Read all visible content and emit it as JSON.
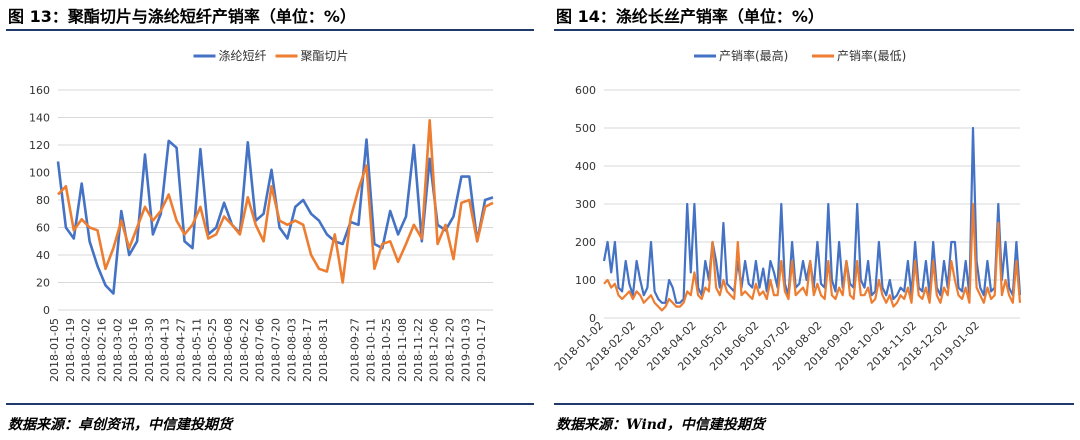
{
  "left": {
    "title": "图 13：聚酯切片与涤纶短纤产销率（单位：%）",
    "source": "数据来源：卓创资讯，中信建投期货",
    "chart_data": {
      "type": "line",
      "x": [
        "2018-01-05",
        "2018-01-12",
        "2018-01-19",
        "2018-01-26",
        "2018-02-02",
        "2018-02-09",
        "2018-02-16",
        "2018-02-23",
        "2018-03-02",
        "2018-03-09",
        "2018-03-16",
        "2018-03-23",
        "2018-03-30",
        "2018-04-06",
        "2018-04-13",
        "2018-04-20",
        "2018-04-27",
        "2018-05-04",
        "2018-05-11",
        "2018-05-18",
        "2018-05-25",
        "2018-06-01",
        "2018-06-08",
        "2018-06-15",
        "2018-06-22",
        "2018-06-29",
        "2018-07-06",
        "2018-07-13",
        "2018-07-20",
        "2018-07-27",
        "2018-08-03",
        "2018-08-10",
        "2018-08-17",
        "2018-08-24",
        "2018-08-31",
        "2018-09-07",
        "2018-09-14",
        "2018-09-21",
        "2018-09-27",
        "2018-10-05",
        "2018-10-11",
        "2018-10-18",
        "2018-10-25",
        "2018-11-01",
        "2018-11-08",
        "2018-11-15",
        "2018-11-22",
        "2018-11-29",
        "2018-12-06",
        "2018-12-13",
        "2018-12-20",
        "2018-12-27",
        "2019-01-03",
        "2019-01-10",
        "2019-01-17",
        "2019-01-24"
      ],
      "tick_labels": [
        "2018-01-05",
        "2018-01-19",
        "2018-02-02",
        "2018-02-16",
        "2018-03-02",
        "2018-03-16",
        "2018-03-30",
        "2018-04-13",
        "2018-04-27",
        "2018-05-11",
        "2018-05-25",
        "2018-06-08",
        "2018-06-22",
        "2018-07-06",
        "2018-07-20",
        "2018-08-03",
        "2018-08-17",
        "2018-08-31",
        "2018-09-27",
        "2018-10-11",
        "2018-10-25",
        "2018-11-08",
        "2018-11-22",
        "2018-12-06",
        "2018-12-20",
        "2019-01-03",
        "2019-01-17"
      ],
      "ylim": [
        0,
        160
      ],
      "yticks": [
        0,
        20,
        40,
        60,
        80,
        100,
        120,
        140,
        160
      ],
      "grid": true,
      "legend_position": "top-center",
      "series": [
        {
          "name": "涤纶短纤",
          "color": "#4472C4",
          "values": [
            108,
            60,
            52,
            92,
            50,
            32,
            18,
            12,
            72,
            40,
            50,
            113,
            55,
            70,
            123,
            118,
            50,
            45,
            117,
            55,
            60,
            78,
            62,
            56,
            122,
            65,
            70,
            102,
            60,
            52,
            75,
            80,
            70,
            65,
            55,
            50,
            48,
            64,
            62,
            124,
            48,
            45,
            72,
            55,
            68,
            120,
            50,
            110,
            62,
            58,
            68,
            97,
            97,
            50,
            80,
            82
          ]
        },
        {
          "name": "聚酯切片",
          "color": "#ED7D31",
          "values": [
            84,
            90,
            58,
            66,
            60,
            58,
            30,
            45,
            65,
            45,
            60,
            75,
            65,
            72,
            84,
            65,
            55,
            62,
            75,
            52,
            55,
            68,
            62,
            55,
            82,
            62,
            50,
            90,
            65,
            62,
            65,
            62,
            40,
            30,
            28,
            55,
            20,
            67,
            88,
            105,
            30,
            48,
            50,
            35,
            48,
            62,
            52,
            138,
            48,
            62,
            37,
            78,
            80,
            50,
            75,
            78
          ]
        }
      ]
    }
  },
  "right": {
    "title": "图 14：涤纶长丝产销率（单位：%）",
    "source": "数据来源：Wind，中信建投期货",
    "chart_data": {
      "type": "line",
      "x_start": "2018-01-02",
      "x_end": "2019-02-10",
      "tick_labels": [
        "2018-01-02",
        "2018-02-02",
        "2018-03-02",
        "2018-04-02",
        "2018-05-02",
        "2018-06-02",
        "2018-07-02",
        "2018-08-02",
        "2018-09-02",
        "2018-10-02",
        "2018-11-02",
        "2018-12-02",
        "2019-01-02"
      ],
      "ylim": [
        0,
        600
      ],
      "yticks": [
        0,
        100,
        200,
        300,
        400,
        500,
        600
      ],
      "grid": true,
      "legend_position": "top-center",
      "series": [
        {
          "name": "产销率(最高)",
          "color": "#4472C4",
          "values": [
            150,
            200,
            120,
            200,
            80,
            70,
            150,
            90,
            60,
            150,
            100,
            60,
            80,
            200,
            70,
            50,
            40,
            40,
            100,
            80,
            40,
            40,
            50,
            300,
            120,
            300,
            80,
            60,
            150,
            100,
            200,
            150,
            80,
            250,
            90,
            80,
            70,
            150,
            80,
            150,
            90,
            80,
            150,
            80,
            130,
            70,
            150,
            120,
            80,
            300,
            90,
            60,
            200,
            80,
            90,
            150,
            100,
            150,
            80,
            200,
            90,
            80,
            300,
            100,
            70,
            200,
            80,
            150,
            90,
            80,
            300,
            100,
            80,
            150,
            60,
            70,
            200,
            80,
            60,
            100,
            50,
            60,
            80,
            70,
            150,
            60,
            200,
            80,
            70,
            150,
            60,
            200,
            80,
            60,
            150,
            80,
            200,
            200,
            80,
            70,
            150,
            60,
            500,
            150,
            80,
            60,
            150,
            70,
            80,
            300,
            100,
            200,
            80,
            60,
            200,
            60
          ]
        },
        {
          "name": "产销率(最低)",
          "color": "#ED7D31",
          "values": [
            90,
            100,
            80,
            90,
            60,
            50,
            60,
            70,
            50,
            70,
            60,
            40,
            50,
            60,
            40,
            30,
            20,
            30,
            50,
            40,
            30,
            30,
            40,
            70,
            60,
            120,
            60,
            50,
            80,
            70,
            200,
            80,
            60,
            100,
            70,
            60,
            50,
            200,
            60,
            70,
            60,
            50,
            90,
            60,
            70,
            50,
            100,
            60,
            60,
            150,
            70,
            50,
            150,
            60,
            70,
            80,
            60,
            150,
            60,
            90,
            60,
            50,
            150,
            60,
            50,
            80,
            60,
            150,
            60,
            50,
            150,
            60,
            60,
            80,
            40,
            50,
            100,
            60,
            40,
            60,
            30,
            40,
            60,
            50,
            80,
            40,
            150,
            60,
            50,
            80,
            40,
            150,
            60,
            40,
            80,
            60,
            150,
            100,
            60,
            50,
            80,
            40,
            300,
            80,
            60,
            40,
            80,
            50,
            60,
            250,
            60,
            100,
            60,
            40,
            150,
            40
          ]
        }
      ]
    }
  }
}
